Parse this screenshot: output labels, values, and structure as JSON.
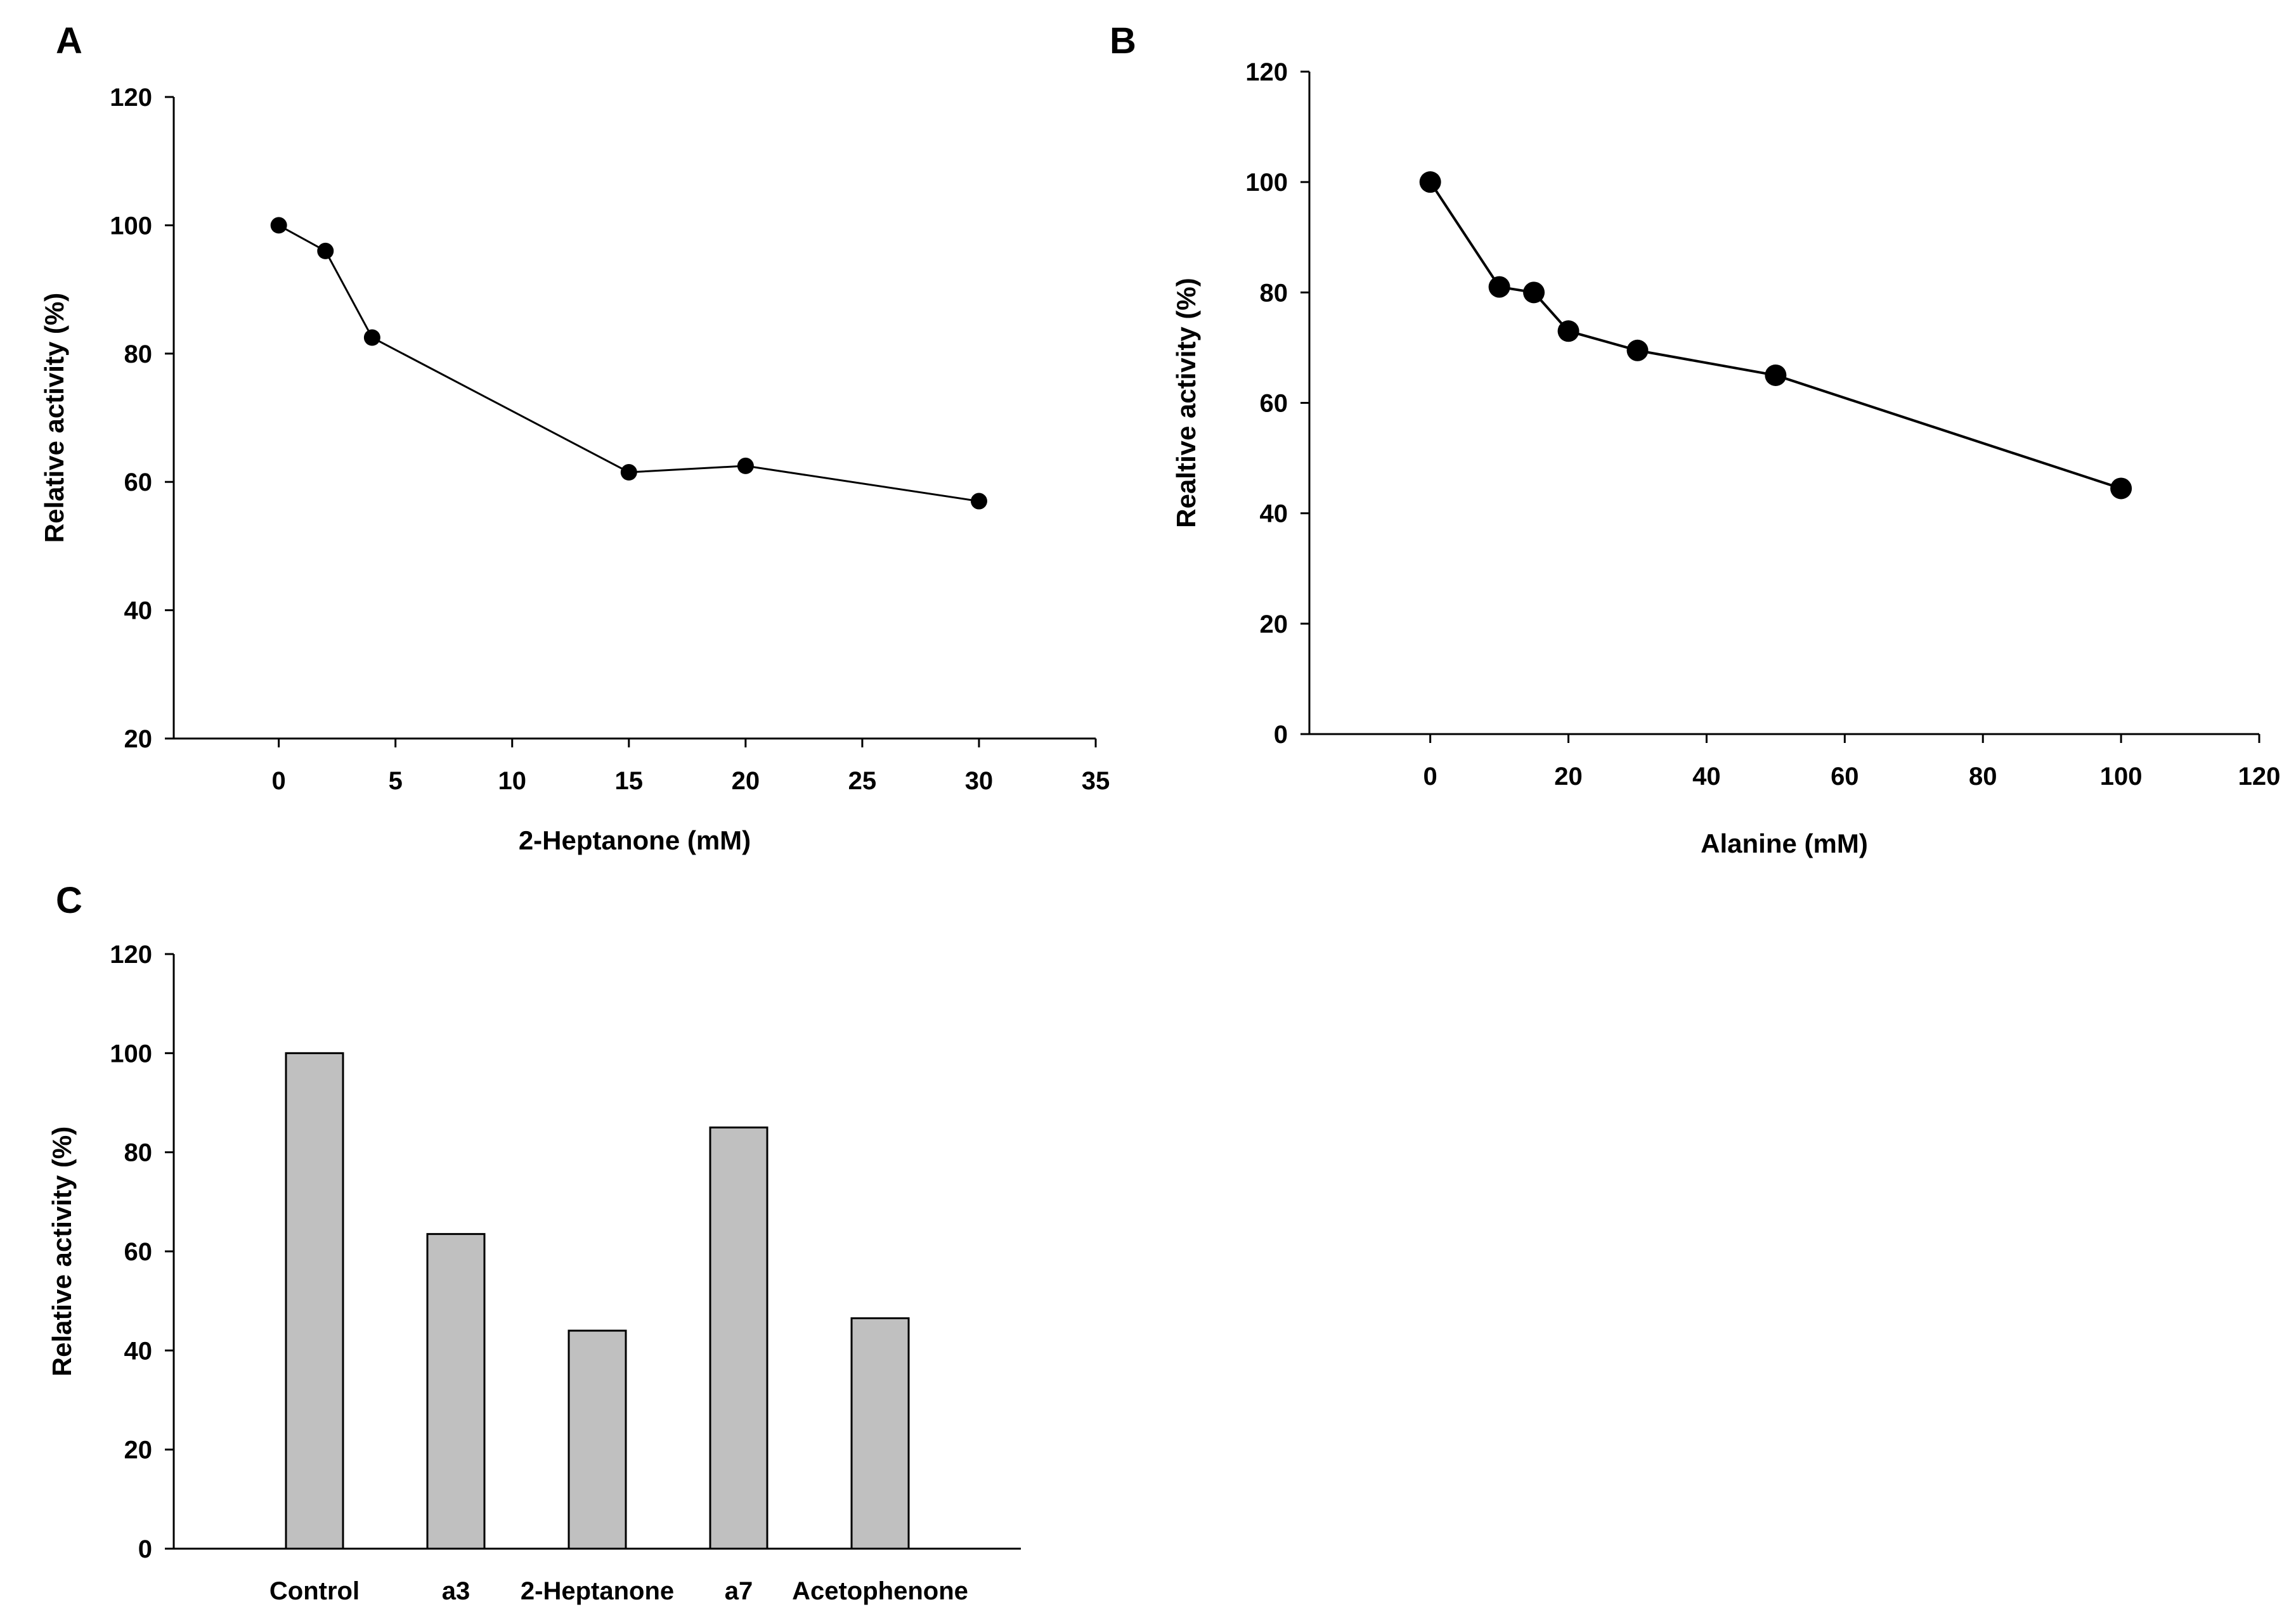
{
  "chart_data": [
    {
      "panel": "A",
      "type": "line",
      "xlabel": "2-Heptanone (mM)",
      "ylabel": "Relative activity (%)",
      "xlim": [
        -4.5,
        35
      ],
      "ylim": [
        20,
        120
      ],
      "xticks": [
        0,
        5,
        10,
        15,
        20,
        25,
        30,
        35
      ],
      "yticks": [
        20,
        40,
        60,
        80,
        100,
        120
      ],
      "grid": false,
      "series": [
        {
          "name": "Relative activity",
          "x": [
            0,
            2,
            4,
            15,
            20,
            30
          ],
          "y": [
            100,
            96,
            82.5,
            61.5,
            62.5,
            57
          ]
        }
      ]
    },
    {
      "panel": "B",
      "type": "line",
      "xlabel": "Alanine (mM)",
      "ylabel": "Realtive activity (%)",
      "xlim": [
        -17.5,
        120
      ],
      "ylim": [
        0,
        120
      ],
      "xticks": [
        0,
        20,
        40,
        60,
        80,
        100,
        120
      ],
      "yticks": [
        0,
        20,
        40,
        60,
        80,
        100,
        120
      ],
      "grid": false,
      "series": [
        {
          "name": "Relative activity",
          "x": [
            0,
            10,
            15,
            20,
            30,
            50,
            100
          ],
          "y": [
            100,
            81,
            80,
            73,
            69.5,
            65,
            44.5
          ]
        }
      ]
    },
    {
      "panel": "C",
      "type": "bar",
      "xlabel": "",
      "ylabel": "Relative activity (%)",
      "ylim": [
        0,
        120
      ],
      "yticks": [
        0,
        20,
        40,
        60,
        80,
        100,
        120
      ],
      "grid": false,
      "categories": [
        "Control",
        "a3",
        "2-Heptanone",
        "a7",
        "Acetophenone"
      ],
      "values": [
        100,
        63.5,
        44,
        85,
        46.5
      ],
      "bar_color": "#c0c0c0"
    }
  ]
}
